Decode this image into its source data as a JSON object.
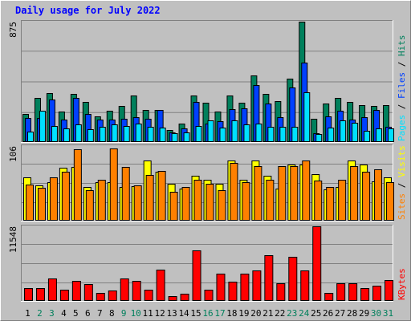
{
  "title": "Daily usage for July 2022",
  "colors": {
    "hits": "#00805c",
    "files": "#0040ff",
    "pages": "#00e0ff",
    "visits": "#ffff00",
    "sites": "#ff8000",
    "kbytes": "#ff0000",
    "background": "#c0c0c0",
    "weekend_label": "#00805c"
  },
  "chart_data": [
    {
      "type": "bar",
      "panel": "hits-files-pages",
      "ymax_label": "875",
      "ylim": [
        0,
        875
      ],
      "legend": {
        "pages": "Pages",
        "sep1": " / ",
        "files": "Files",
        "sep2": " / ",
        "hits": "Hits"
      },
      "categories": [
        "1",
        "2",
        "3",
        "4",
        "5",
        "6",
        "7",
        "8",
        "9",
        "10",
        "11",
        "12",
        "13",
        "14",
        "15",
        "16",
        "17",
        "18",
        "19",
        "20",
        "21",
        "22",
        "23",
        "24",
        "25",
        "26",
        "27",
        "28",
        "29",
        "30",
        "31"
      ],
      "weekend_days": [
        2,
        3,
        9,
        10,
        16,
        17,
        23,
        24,
        30,
        31
      ],
      "series": [
        {
          "name": "Hits",
          "color": "#00805c",
          "values": [
            205,
            321,
            356,
            222,
            349,
            292,
            189,
            230,
            262,
            340,
            234,
            235,
            87,
            136,
            338,
            287,
            224,
            337,
            284,
            485,
            352,
            295,
            462,
            875,
            172,
            279,
            323,
            292,
            271,
            265,
            270
          ]
        },
        {
          "name": "Files",
          "color": "#0040ff",
          "values": [
            174,
            175,
            311,
            165,
            318,
            207,
            162,
            164,
            168,
            183,
            167,
            234,
            72,
            100,
            291,
            135,
            151,
            241,
            246,
            412,
            282,
            180,
            396,
            576,
            65,
            188,
            229,
            165,
            179,
            235,
            111
          ]
        },
        {
          "name": "Pages",
          "color": "#00e0ff",
          "values": [
            78,
            225,
            115,
            98,
            130,
            92,
            110,
            127,
            118,
            137,
            113,
            104,
            66,
            70,
            114,
            156,
            103,
            155,
            129,
            137,
            108,
            113,
            113,
            360,
            56,
            104,
            159,
            138,
            80,
            97,
            100
          ]
        }
      ]
    },
    {
      "type": "bar",
      "panel": "visits-sites",
      "ymax_label": "106",
      "ylim": [
        0,
        106
      ],
      "legend": {
        "sites": "Sites",
        "sep": " / ",
        "visits": "Visits"
      },
      "categories": [
        "1",
        "2",
        "3",
        "4",
        "5",
        "6",
        "7",
        "8",
        "9",
        "10",
        "11",
        "12",
        "13",
        "14",
        "15",
        "16",
        "17",
        "18",
        "19",
        "20",
        "21",
        "22",
        "23",
        "24",
        "25",
        "26",
        "27",
        "28",
        "29",
        "30",
        "31"
      ],
      "series": [
        {
          "name": "Visits",
          "color": "#ffff00",
          "values": [
            62,
            50,
            55,
            75,
            76,
            48,
            55,
            55,
            48,
            49,
            85,
            70,
            52,
            46,
            64,
            58,
            52,
            86,
            58,
            86,
            64,
            46,
            80,
            80,
            66,
            45,
            48,
            85,
            80,
            56,
            62
          ]
        },
        {
          "name": "Sites",
          "color": "#ff8000",
          "values": [
            51,
            47,
            62,
            70,
            102,
            43,
            58,
            103,
            76,
            50,
            65,
            71,
            41,
            48,
            58,
            52,
            43,
            82,
            55,
            78,
            58,
            78,
            77,
            86,
            57,
            48,
            58,
            77,
            70,
            73,
            55
          ]
        }
      ]
    },
    {
      "type": "bar",
      "panel": "kbytes",
      "ymax_label": "11548",
      "ylim": [
        0,
        11548
      ],
      "legend": {
        "kbytes": "KBytes"
      },
      "categories": [
        "1",
        "2",
        "3",
        "4",
        "5",
        "6",
        "7",
        "8",
        "9",
        "10",
        "11",
        "12",
        "13",
        "14",
        "15",
        "16",
        "17",
        "18",
        "19",
        "20",
        "21",
        "22",
        "23",
        "24",
        "25",
        "26",
        "27",
        "28",
        "29",
        "30",
        "31"
      ],
      "series": [
        {
          "name": "KBytes",
          "color": "#ff0000",
          "values": [
            2026,
            2026,
            3426,
            1767,
            3108,
            2581,
            1285,
            1612,
            3426,
            3108,
            1767,
            4891,
            711,
            1064,
            7810,
            1767,
            4204,
            2961,
            4204,
            4680,
            7133,
            2741,
            6782,
            4680,
            11548,
            1285,
            2741,
            2741,
            2026,
            2336,
            3259
          ]
        }
      ]
    }
  ]
}
